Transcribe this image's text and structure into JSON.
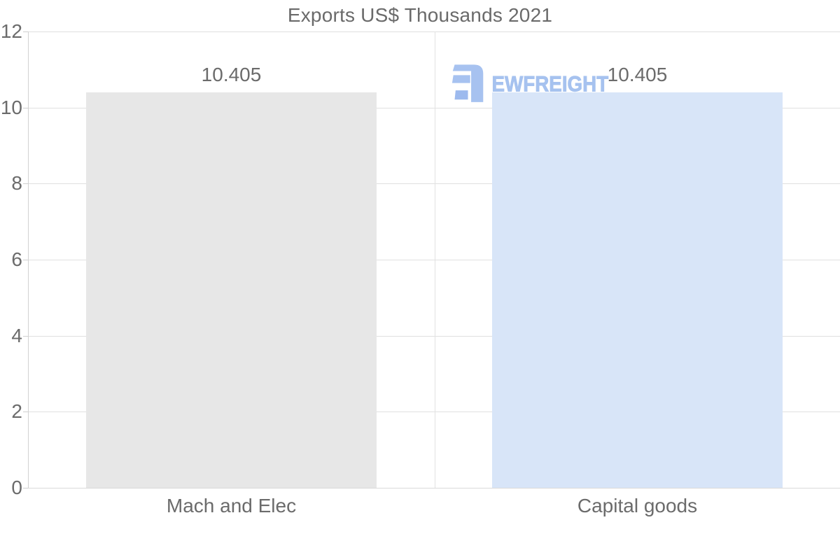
{
  "watermark": {
    "text": "EWFREIGHT",
    "text_color": "#a6c2ef",
    "icon_color": "#a7c2f0",
    "icon_block_color": "#9dbaee"
  },
  "chart_data": {
    "type": "bar",
    "title": "Exports US$ Thousands 2021",
    "categories": [
      "Mach and Elec",
      "Capital goods"
    ],
    "values": [
      10.405,
      10.405
    ],
    "value_labels": [
      "10.405",
      "10.405"
    ],
    "series": [
      {
        "name": "Mach and Elec",
        "values": [
          10.405
        ],
        "color": "#e7e7e7"
      },
      {
        "name": "Capital goods",
        "values": [
          10.405
        ],
        "color": "#d8e5f8"
      }
    ],
    "bar_colors": [
      "#e7e7e7",
      "#d8e5f8"
    ],
    "xlabel": "",
    "ylabel": "",
    "ylim": [
      0,
      12
    ],
    "ytick_step": 2,
    "ytick_labels": [
      "0",
      "2",
      "4",
      "6",
      "8",
      "10",
      "12"
    ],
    "grid": "on",
    "legend": "none",
    "text_color": "#6b6b6b",
    "grid_color": "#e0e0e0",
    "axis_color": "#d2d2d2",
    "background": "#ffffff"
  }
}
